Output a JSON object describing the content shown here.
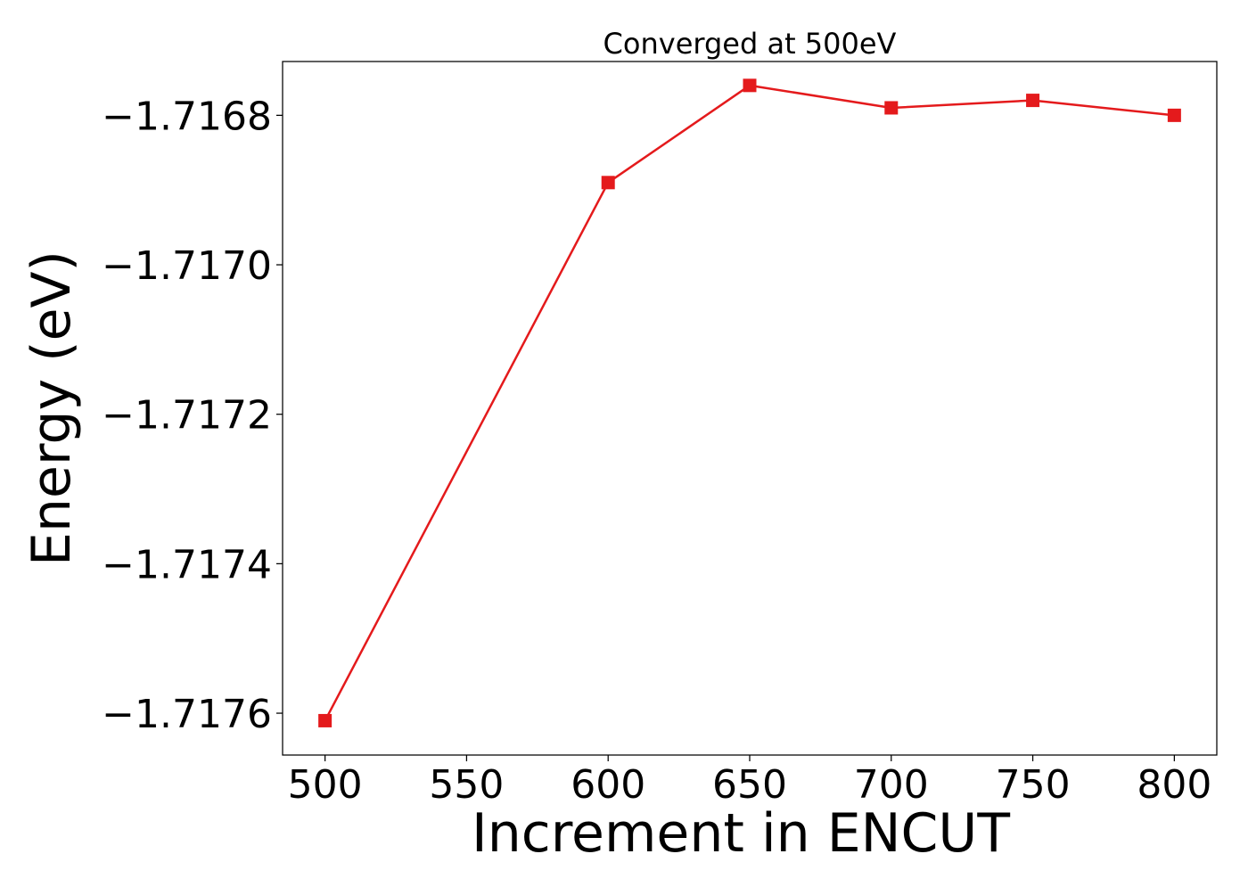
{
  "chart_data": {
    "type": "line",
    "title": "Converged at 500eV",
    "xlabel": "Increment in ENCUT",
    "ylabel": "Energy (eV)",
    "x": [
      500,
      600,
      650,
      700,
      750,
      800
    ],
    "series": [
      {
        "values": [
          -1.71761,
          -1.71689,
          -1.71676,
          -1.71679,
          -1.71678,
          -1.7168
        ],
        "color": "#e41a1c",
        "marker": "square"
      }
    ],
    "xticks": [
      500,
      550,
      600,
      650,
      700,
      750,
      800
    ],
    "xtick_labels": [
      "500",
      "550",
      "600",
      "650",
      "700",
      "750",
      "800"
    ],
    "yticks": [
      -1.7168,
      -1.717,
      -1.7172,
      -1.7174,
      -1.7176
    ],
    "ytick_labels": [
      "−1.7168",
      "−1.7170",
      "−1.7172",
      "−1.7174",
      "−1.7176"
    ],
    "xlim": [
      485,
      815
    ],
    "ylim": [
      -1.717656,
      -1.716728
    ],
    "grid": false,
    "legend": "none"
  }
}
